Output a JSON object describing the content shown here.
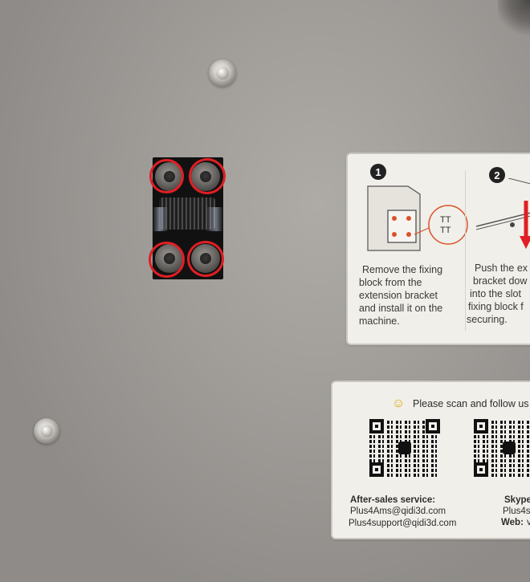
{
  "step1": {
    "number": "1",
    "lines": [
      "Remove the fixing",
      "block from the",
      "extension bracket",
      "and install it on the",
      "machine."
    ]
  },
  "step2": {
    "number": "2",
    "lines": [
      "Push the ex",
      "bracket dow",
      "into the slot",
      "fixing block f",
      "securing."
    ]
  },
  "contact": {
    "header": "Please scan and follow us",
    "after_sales_label": "After-sales service:",
    "email1": "Plus4Ams@qidi3d.com",
    "email2": "Plus4support@qidi3d.com",
    "skype_label": "Skype",
    "skype_value": "Plus4s",
    "web_label": "Web:",
    "web_value": "v"
  },
  "colors": {
    "marker": "#e01f24",
    "panel": "#a19e9a",
    "card": "#f1efea"
  }
}
